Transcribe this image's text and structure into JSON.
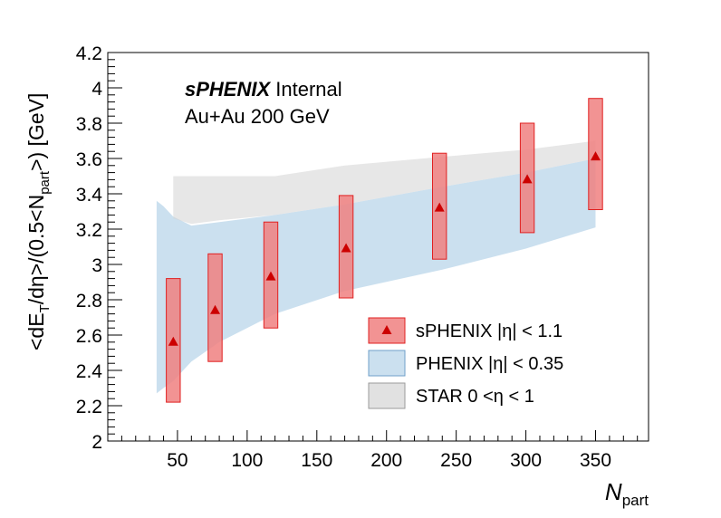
{
  "chart_data": {
    "type": "scatter",
    "title_bold": "sPHENIX",
    "title_rest": " Internal",
    "subtitle": "Au+Au 200 GeV",
    "xlabel_main": "N",
    "xlabel_sub": "part",
    "ylabel": {
      "p1": "<dE",
      "p2": "T",
      "p3": "/dη>/(0.5<N",
      "p4": "part",
      "p5": ">) [GeV]"
    },
    "xlim": [
      0,
      388
    ],
    "ylim": [
      2.0,
      4.2
    ],
    "xticks": [
      50,
      100,
      150,
      200,
      250,
      300,
      350
    ],
    "xtick_labels": [
      "50",
      "100",
      "150",
      "200",
      "250",
      "300",
      "350"
    ],
    "yticks": [
      2.0,
      2.2,
      2.4,
      2.6,
      2.8,
      3.0,
      3.2,
      3.4,
      3.6,
      3.8,
      4.0,
      4.2
    ],
    "ytick_labels": [
      "2",
      "2.2",
      "2.4",
      "2.6",
      "2.8",
      "3",
      "3.2",
      "3.4",
      "3.6",
      "3.8",
      "4",
      "4.2"
    ],
    "series": [
      {
        "name": "sPHENIX |η| < 1.1",
        "color": "#cc0000",
        "box_fill": "#f08080",
        "box_stroke": "#e02020",
        "points": [
          {
            "x": 47,
            "y": 2.56,
            "ylo": 2.22,
            "yhi": 2.92
          },
          {
            "x": 77,
            "y": 2.74,
            "ylo": 2.45,
            "yhi": 3.06
          },
          {
            "x": 117,
            "y": 2.93,
            "ylo": 2.64,
            "yhi": 3.24
          },
          {
            "x": 171,
            "y": 3.09,
            "ylo": 2.81,
            "yhi": 3.39
          },
          {
            "x": 238,
            "y": 3.32,
            "ylo": 3.03,
            "yhi": 3.63
          },
          {
            "x": 301,
            "y": 3.48,
            "ylo": 3.18,
            "yhi": 3.8
          },
          {
            "x": 350,
            "y": 3.61,
            "ylo": 3.31,
            "yhi": 3.94
          }
        ],
        "box_halfwidth": 5
      },
      {
        "name": "PHENIX |η| < 0.35",
        "color": "#a8cce4",
        "band": {
          "x": [
            35,
            40,
            47,
            60,
            80,
            120,
            170,
            240,
            300,
            350
          ],
          "lo": [
            2.27,
            2.3,
            2.34,
            2.45,
            2.56,
            2.72,
            2.85,
            2.97,
            3.09,
            3.21
          ],
          "hi": [
            3.36,
            3.33,
            3.27,
            3.22,
            3.24,
            3.28,
            3.34,
            3.44,
            3.52,
            3.6
          ]
        }
      },
      {
        "name": "STAR 0 <η < 1",
        "color": "#d4d4d4",
        "band": {
          "x": [
            47,
            60,
            80,
            120,
            170,
            240,
            300,
            350
          ],
          "lo": [
            3.26,
            3.23,
            3.25,
            3.28,
            3.34,
            3.44,
            3.52,
            3.6
          ],
          "hi": [
            3.5,
            3.5,
            3.5,
            3.5,
            3.56,
            3.61,
            3.65,
            3.7
          ]
        }
      }
    ],
    "legend": {
      "placement": "bottom-right",
      "entries": [
        "sPHENIX |η| < 1.1",
        "PHENIX |η| < 0.35",
        "STAR 0 <η < 1"
      ]
    }
  }
}
